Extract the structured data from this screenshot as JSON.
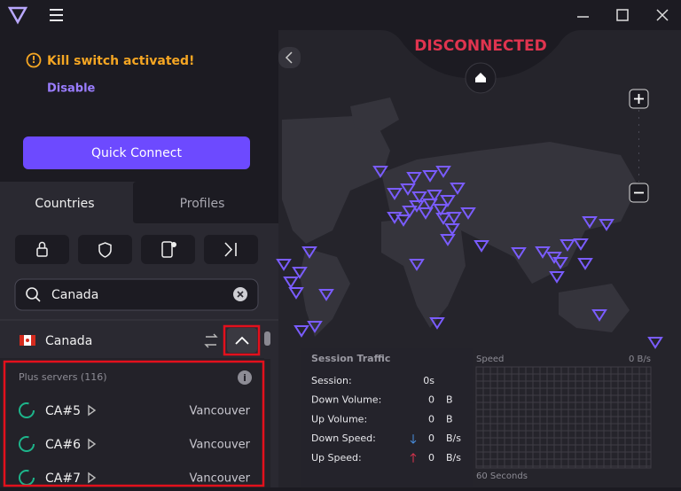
{
  "sidebar": {
    "kill_switch": "Kill switch activated!",
    "disable": "Disable",
    "quick_connect": "Quick Connect",
    "tabs": [
      "Countries",
      "Profiles"
    ],
    "search": "Canada",
    "country": "Canada",
    "group": "Plus servers (116)",
    "servers": [
      {
        "name": "CA#5",
        "city": "Vancouver"
      },
      {
        "name": "CA#6",
        "city": "Vancouver"
      },
      {
        "name": "CA#7",
        "city": "Vancouver"
      }
    ]
  },
  "map": {
    "status": "DISCONNECTED"
  },
  "traffic": {
    "title": "Session Traffic",
    "rows": [
      {
        "label": "Session:",
        "value": "0s",
        "unit": ""
      },
      {
        "label": "Down Volume:",
        "value": "0",
        "unit": "B"
      },
      {
        "label": "Up Volume:",
        "value": "0",
        "unit": "B"
      },
      {
        "label": "Down Speed:",
        "value": "0",
        "unit": "B/s"
      },
      {
        "label": "Up Speed:",
        "value": "0",
        "unit": "B/s"
      }
    ],
    "speed_title": "Speed",
    "speed_value": "0 B/s",
    "speed_axis": "60 Seconds"
  }
}
